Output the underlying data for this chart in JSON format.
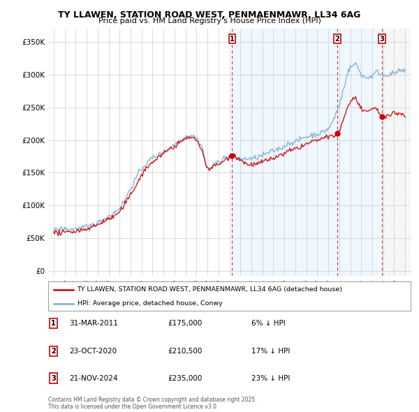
{
  "title": "TY LLAWEN, STATION ROAD WEST, PENMAENMAWR, LL34 6AG",
  "subtitle": "Price paid vs. HM Land Registry's House Price Index (HPI)",
  "hpi_label": "HPI: Average price, detached house, Conwy",
  "property_label": "TY LLAWEN, STATION ROAD WEST, PENMAENMAWR, LL34 6AG (detached house)",
  "red_color": "#cc0000",
  "blue_color": "#7aadd4",
  "blue_fill": "#ddeeff",
  "background_color": "#ffffff",
  "grid_color": "#cccccc",
  "sale_points": [
    {
      "index": 1,
      "date": "31-MAR-2011",
      "price": 175000,
      "hpi_pct": "6% ↓ HPI",
      "x_year": 2011.25
    },
    {
      "index": 2,
      "date": "23-OCT-2020",
      "price": 210500,
      "hpi_pct": "17% ↓ HPI",
      "x_year": 2020.83
    },
    {
      "index": 3,
      "date": "21-NOV-2024",
      "price": 235000,
      "hpi_pct": "23% ↓ HPI",
      "x_year": 2024.9
    }
  ],
  "yticks": [
    0,
    50000,
    100000,
    150000,
    200000,
    250000,
    300000,
    350000
  ],
  "ytick_labels": [
    "£0",
    "£50K",
    "£100K",
    "£150K",
    "£200K",
    "£250K",
    "£300K",
    "£350K"
  ],
  "xmin": 1994.5,
  "xmax": 2027.5,
  "ymin": -8000,
  "ymax": 370000,
  "footnote": "Contains HM Land Registry data © Crown copyright and database right 2025.\nThis data is licensed under the Open Government Licence v3.0."
}
